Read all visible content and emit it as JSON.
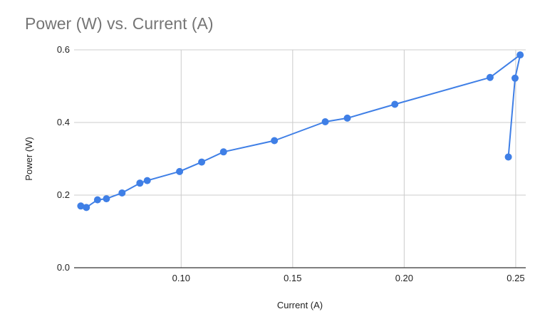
{
  "chart_data": {
    "type": "line",
    "title": "Power (W) vs. Current (A)",
    "xlabel": "Current (A)",
    "ylabel": "Power (W)",
    "xlim": [
      0.052,
      0.2545
    ],
    "ylim": [
      0,
      0.6
    ],
    "x_ticks": [
      {
        "value": 0.1,
        "label": "0.10"
      },
      {
        "value": 0.15,
        "label": "0.15"
      },
      {
        "value": 0.2,
        "label": "0.20"
      },
      {
        "value": 0.25,
        "label": "0.25"
      }
    ],
    "y_ticks": [
      {
        "value": 0.0,
        "label": "0.0"
      },
      {
        "value": 0.2,
        "label": "0.2"
      },
      {
        "value": 0.4,
        "label": "0.4"
      },
      {
        "value": 0.6,
        "label": "0.6"
      }
    ],
    "grid": true,
    "legend": "none",
    "series": [
      {
        "color": "#3f7fe6",
        "points": [
          {
            "x": 0.055,
            "y": 0.17
          },
          {
            "x": 0.0575,
            "y": 0.166
          },
          {
            "x": 0.0625,
            "y": 0.187
          },
          {
            "x": 0.0665,
            "y": 0.19
          },
          {
            "x": 0.0735,
            "y": 0.206
          },
          {
            "x": 0.0815,
            "y": 0.233
          },
          {
            "x": 0.0848,
            "y": 0.24
          },
          {
            "x": 0.0993,
            "y": 0.265
          },
          {
            "x": 0.1092,
            "y": 0.291
          },
          {
            "x": 0.119,
            "y": 0.319
          },
          {
            "x": 0.1418,
            "y": 0.35
          },
          {
            "x": 0.1646,
            "y": 0.402
          },
          {
            "x": 0.1745,
            "y": 0.412
          },
          {
            "x": 0.1958,
            "y": 0.45
          },
          {
            "x": 0.2385,
            "y": 0.524
          },
          {
            "x": 0.252,
            "y": 0.586
          },
          {
            "x": 0.2497,
            "y": 0.522
          },
          {
            "x": 0.2467,
            "y": 0.305
          }
        ]
      }
    ]
  }
}
